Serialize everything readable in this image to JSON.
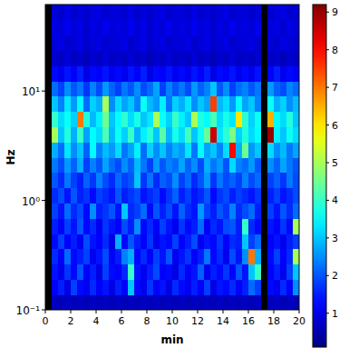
{
  "chart_data": {
    "type": "heatmap",
    "xlabel": "min",
    "ylabel": "Hz",
    "log": "y",
    "xlim": [
      0,
      20
    ],
    "ylim": [
      0.1,
      61.7
    ],
    "xticks": [
      0,
      2,
      4,
      6,
      8,
      10,
      12,
      14,
      16,
      18,
      20
    ],
    "yticks": [
      {
        "value": 0.1,
        "label": "10⁻¹"
      },
      {
        "value": 1,
        "label": "10⁰"
      },
      {
        "value": 10,
        "label": "10¹"
      }
    ],
    "x_edges": [
      0,
      0.5,
      1,
      1.5,
      2,
      2.5,
      3,
      3.5,
      4,
      4.5,
      5,
      5.5,
      6,
      6.5,
      7,
      7.5,
      8,
      8.5,
      9,
      9.5,
      10,
      10.5,
      11,
      11.5,
      12,
      12.5,
      13,
      13.5,
      14,
      14.5,
      15,
      15.5,
      16,
      16.5,
      17,
      17.5,
      18,
      18.5,
      19,
      19.5,
      20
    ],
    "y_edges": [
      0.1,
      0.138,
      0.19,
      0.262,
      0.361,
      0.498,
      0.687,
      0.947,
      1.306,
      1.801,
      2.483,
      3.424,
      4.721,
      6.51,
      8.974,
      12.37,
      17.06,
      23.52,
      32.43,
      44.72,
      61.7
    ],
    "z": [
      [
        null,
        0.7,
        0.6,
        0.7,
        0.6,
        0.7,
        0.6,
        0.7,
        0.6,
        0.7,
        0.6,
        0.7,
        0.6,
        0.7,
        0.6,
        0.7,
        0.6,
        0.7,
        0.6,
        0.7,
        0.6,
        0.7,
        0.6,
        0.7,
        0.6,
        0.7,
        0.6,
        0.7,
        0.6,
        0.7,
        0.6,
        0.7,
        0.6,
        0.7,
        null,
        0.6,
        0.7,
        0.6,
        0.7,
        0.6
      ],
      [
        null,
        1.2,
        1.5,
        1.0,
        1.8,
        1.3,
        1.1,
        1.6,
        1.2,
        1.4,
        1.0,
        1.5,
        1.2,
        3.0,
        1.3,
        1.1,
        1.7,
        1.2,
        1.4,
        1.0,
        1.6,
        1.3,
        1.1,
        1.5,
        1.2,
        1.8,
        1.0,
        1.4,
        1.3,
        1.6,
        1.2,
        1.5,
        2.2,
        1.8,
        null,
        1.3,
        1.1,
        1.6,
        1.2,
        2.5
      ],
      [
        null,
        1.4,
        1.1,
        1.7,
        1.3,
        2.0,
        1.2,
        1.5,
        1.0,
        1.8,
        1.3,
        1.2,
        1.6,
        4.0,
        1.4,
        1.1,
        1.5,
        1.9,
        1.2,
        1.3,
        1.0,
        1.6,
        1.2,
        1.4,
        2.1,
        1.1,
        1.5,
        1.3,
        1.7,
        1.2,
        2.0,
        1.4,
        3.0,
        4.0,
        null,
        1.2,
        1.5,
        1.1,
        1.8,
        3.0
      ],
      [
        null,
        1.6,
        1.2,
        2.2,
        1.3,
        1.5,
        1.8,
        1.1,
        1.4,
        1.9,
        1.2,
        1.5,
        2.4,
        2.8,
        1.3,
        1.6,
        1.2,
        1.8,
        1.4,
        2.0,
        1.1,
        1.4,
        1.7,
        1.2,
        1.5,
        2.3,
        1.3,
        1.6,
        1.1,
        1.9,
        1.4,
        2.5,
        7.0,
        2.8,
        null,
        1.3,
        1.8,
        1.2,
        1.6,
        5.0
      ],
      [
        null,
        1.3,
        1.8,
        1.2,
        1.5,
        1.1,
        1.9,
        1.4,
        1.2,
        1.6,
        1.0,
        2.8,
        1.3,
        2.0,
        1.5,
        1.2,
        1.7,
        1.1,
        1.4,
        1.3,
        1.8,
        1.2,
        1.5,
        1.9,
        1.1,
        1.4,
        1.3,
        1.7,
        1.2,
        1.6,
        1.5,
        3.0,
        1.8,
        2.2,
        null,
        1.2,
        1.4,
        1.1,
        1.5,
        1.8
      ],
      [
        null,
        1.5,
        1.2,
        1.8,
        1.4,
        2.0,
        1.3,
        1.6,
        1.1,
        1.7,
        1.4,
        1.2,
        1.9,
        1.5,
        2.5,
        1.3,
        1.6,
        1.2,
        1.8,
        1.4,
        1.1,
        1.7,
        1.3,
        1.5,
        2.2,
        1.2,
        1.6,
        1.4,
        1.9,
        2.0,
        1.5,
        4.0,
        1.6,
        1.3,
        null,
        1.4,
        1.2,
        1.7,
        1.3,
        5.0
      ],
      [
        null,
        1.8,
        1.4,
        2.2,
        1.6,
        1.9,
        1.3,
        2.5,
        1.5,
        1.7,
        2.0,
        1.4,
        3.0,
        1.6,
        1.8,
        2.2,
        1.3,
        2.0,
        1.5,
        1.9,
        1.4,
        2.1,
        1.6,
        1.4,
        2.6,
        1.8,
        1.5,
        2.0,
        1.7,
        2.4,
        1.6,
        1.9,
        2.2,
        1.5,
        null,
        1.8,
        1.4,
        2.0,
        1.6,
        2.2
      ],
      [
        null,
        1.6,
        1.9,
        1.4,
        2.0,
        1.5,
        1.7,
        1.3,
        1.8,
        1.6,
        1.4,
        2.0,
        1.5,
        1.7,
        1.9,
        1.4,
        1.6,
        1.8,
        1.3,
        1.7,
        2.1,
        1.5,
        1.8,
        1.4,
        1.6,
        2.0,
        1.3,
        1.7,
        1.9,
        1.5,
        1.8,
        1.6,
        1.4,
        1.7,
        null,
        1.5,
        1.8,
        1.4,
        1.6,
        1.9
      ],
      [
        null,
        2.0,
        1.6,
        2.3,
        1.8,
        1.5,
        2.1,
        1.7,
        2.4,
        1.9,
        1.6,
        2.2,
        1.8,
        2.0,
        3.0,
        1.7,
        2.3,
        1.6,
        2.1,
        1.9,
        2.5,
        1.8,
        2.2,
        1.6,
        2.0,
        2.6,
        1.7,
        2.3,
        1.9,
        2.1,
        1.8,
        2.4,
        1.9,
        2.2,
        null,
        1.8,
        2.1,
        1.7,
        2.3,
        1.9
      ],
      [
        null,
        2.3,
        1.9,
        2.6,
        2.1,
        2.8,
        1.8,
        2.4,
        2.0,
        2.7,
        2.2,
        1.9,
        2.5,
        2.1,
        2.9,
        2.3,
        1.8,
        2.6,
        2.0,
        2.4,
        2.2,
        2.7,
        2.1,
        2.5,
        1.9,
        2.8,
        2.3,
        2.6,
        2.0,
        3.2,
        2.4,
        2.2,
        2.6,
        2.0,
        null,
        2.5,
        2.1,
        2.7,
        2.3,
        2.0
      ],
      [
        null,
        2.8,
        2.2,
        3.3,
        2.5,
        3.0,
        2.1,
        3.5,
        2.4,
        2.9,
        2.6,
        3.2,
        2.3,
        2.7,
        3.4,
        2.2,
        3.1,
        2.5,
        3.0,
        2.4,
        2.8,
        2.6,
        3.3,
        2.3,
        3.5,
        2.7,
        3.0,
        2.4,
        3.2,
        8.0,
        2.8,
        4.5,
        2.6,
        3.0,
        null,
        3.2,
        2.5,
        2.9,
        2.3,
        2.7
      ],
      [
        null,
        5.0,
        3.0,
        3.8,
        2.8,
        4.0,
        2.7,
        3.5,
        3.2,
        4.2,
        2.9,
        3.6,
        3.1,
        4.0,
        2.8,
        3.4,
        3.9,
        3.0,
        4.3,
        2.9,
        3.7,
        3.2,
        4.1,
        3.0,
        3.6,
        4.4,
        8.5,
        3.3,
        3.9,
        4.6,
        3.1,
        3.8,
        3.2,
        3.5,
        null,
        9.0,
        3.4,
        3.0,
        3.6,
        3.2
      ],
      [
        null,
        4.0,
        3.2,
        3.6,
        3.1,
        7.0,
        3.8,
        2.9,
        3.4,
        4.5,
        3.0,
        3.5,
        3.9,
        3.2,
        3.7,
        3.0,
        3.3,
        5.0,
        3.6,
        3.1,
        4.0,
        3.4,
        3.0,
        5.0,
        3.8,
        3.5,
        4.2,
        3.2,
        3.7,
        3.3,
        6.0,
        3.9,
        3.1,
        3.6,
        null,
        6.5,
        3.5,
        3.2,
        3.8,
        3.0
      ],
      [
        null,
        3.0,
        2.4,
        3.3,
        2.6,
        3.5,
        2.2,
        3.1,
        2.8,
        5.0,
        2.5,
        3.2,
        2.7,
        3.0,
        2.4,
        3.6,
        2.9,
        2.6,
        3.4,
        2.3,
        3.1,
        2.8,
        3.3,
        2.5,
        3.0,
        2.7,
        7.5,
        2.9,
        3.2,
        2.6,
        3.5,
        2.7,
        3.0,
        2.4,
        null,
        3.6,
        2.8,
        3.1,
        2.5,
        2.9
      ],
      [
        null,
        2.2,
        1.8,
        2.5,
        2.0,
        2.3,
        1.7,
        2.4,
        1.9,
        2.6,
        2.1,
        1.8,
        2.3,
        2.0,
        2.5,
        1.9,
        2.2,
        2.7,
        1.8,
        2.4,
        2.0,
        2.3,
        1.9,
        2.6,
        2.1,
        2.4,
        3.0,
        2.0,
        2.5,
        1.8,
        2.2,
        2.4,
        2.0,
        2.3,
        null,
        2.6,
        2.1,
        1.9,
        2.4,
        2.2
      ],
      [
        null,
        1.3,
        1.1,
        1.4,
        1.2,
        1.5,
        1.0,
        1.3,
        1.2,
        1.4,
        1.1,
        1.3,
        1.1,
        1.4,
        1.2,
        1.5,
        1.0,
        1.3,
        1.2,
        1.4,
        1.1,
        1.3,
        1.1,
        1.4,
        1.2,
        1.5,
        1.0,
        1.3,
        1.2,
        1.4,
        1.1,
        1.3,
        1.1,
        1.4,
        null,
        1.2,
        1.5,
        1.1,
        1.3,
        1.2
      ],
      [
        null,
        0.8,
        0.7,
        0.9,
        0.7,
        0.8,
        0.6,
        0.8,
        0.7,
        0.9,
        0.7,
        0.8,
        0.7,
        0.9,
        0.7,
        0.8,
        0.6,
        0.8,
        0.7,
        0.9,
        0.7,
        0.8,
        0.7,
        0.9,
        0.7,
        0.8,
        0.6,
        0.8,
        0.7,
        0.9,
        0.7,
        0.8,
        0.7,
        0.8,
        null,
        0.7,
        0.8,
        0.6,
        0.8,
        0.7
      ],
      [
        null,
        0.9,
        1.0,
        0.8,
        0.9,
        1.0,
        0.8,
        0.9,
        1.0,
        0.8,
        0.9,
        0.9,
        1.0,
        0.8,
        0.9,
        1.0,
        0.8,
        0.9,
        1.0,
        0.8,
        0.9,
        0.9,
        1.0,
        0.8,
        0.9,
        1.0,
        0.8,
        0.9,
        1.0,
        0.8,
        0.9,
        0.9,
        1.0,
        0.8,
        null,
        0.9,
        0.8,
        1.0,
        0.9,
        0.8
      ],
      [
        null,
        1.0,
        0.9,
        1.1,
        0.9,
        1.0,
        0.8,
        1.0,
        0.9,
        1.1,
        0.9,
        1.0,
        0.9,
        1.1,
        0.9,
        1.0,
        0.8,
        1.0,
        0.9,
        1.1,
        0.9,
        1.0,
        0.9,
        1.1,
        0.9,
        1.0,
        0.8,
        1.0,
        0.9,
        1.1,
        0.9,
        1.0,
        0.9,
        1.1,
        null,
        0.9,
        1.0,
        0.8,
        1.0,
        0.9
      ],
      [
        null,
        0.9,
        0.8,
        1.0,
        0.8,
        0.9,
        0.8,
        0.9,
        1.0,
        0.8,
        0.9,
        0.9,
        0.8,
        1.0,
        0.8,
        0.9,
        0.8,
        0.9,
        1.0,
        0.8,
        0.9,
        0.9,
        0.8,
        1.0,
        0.8,
        0.9,
        0.8,
        0.9,
        1.0,
        0.8,
        0.9,
        0.9,
        0.8,
        0.9,
        null,
        0.8,
        0.9,
        1.0,
        0.8,
        0.9
      ]
    ],
    "colorbar": {
      "range": [
        0.1,
        9.2
      ],
      "ticks": [
        1,
        2,
        3,
        4,
        5,
        6,
        7,
        8,
        9
      ]
    }
  }
}
